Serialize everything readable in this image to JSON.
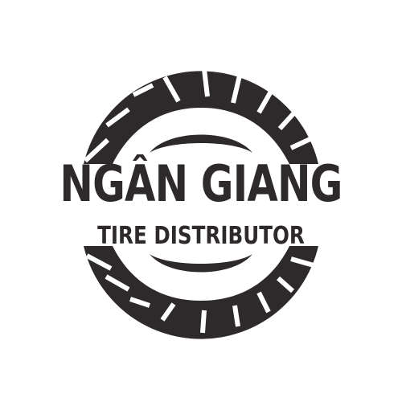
{
  "logo": {
    "name": "NGÂN GIANG",
    "tagline": "TIRE DISTRIBUTOR",
    "emblem": "tire-icon",
    "colors": {
      "ink": "#2e2a2b",
      "background": "#ffffff"
    }
  }
}
